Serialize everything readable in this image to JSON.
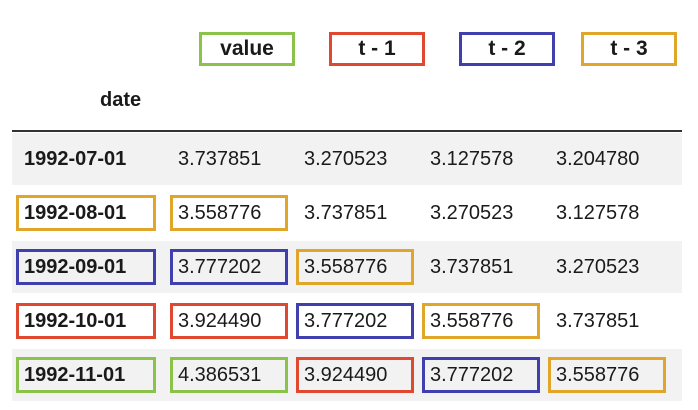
{
  "columns": {
    "index_name": "date",
    "value": "value",
    "t1": "t - 1",
    "t2": "t - 2",
    "t3": "t - 3"
  },
  "colors": {
    "green": "#8bc34a",
    "red": "#e0482f",
    "blue": "#3f3fae",
    "orange": "#dfa62a"
  },
  "rows": [
    {
      "date": "1992-07-01",
      "value": "3.737851",
      "t1": "3.270523",
      "t2": "3.127578",
      "t3": "3.204780"
    },
    {
      "date": "1992-08-01",
      "value": "3.558776",
      "t1": "3.737851",
      "t2": "3.270523",
      "t3": "3.127578"
    },
    {
      "date": "1992-09-01",
      "value": "3.777202",
      "t1": "3.558776",
      "t2": "3.737851",
      "t3": "3.270523"
    },
    {
      "date": "1992-10-01",
      "value": "3.924490",
      "t1": "3.777202",
      "t2": "3.558776",
      "t3": "3.737851"
    },
    {
      "date": "1992-11-01",
      "value": "4.386531",
      "t1": "3.924490",
      "t2": "3.777202",
      "t3": "3.558776"
    }
  ]
}
